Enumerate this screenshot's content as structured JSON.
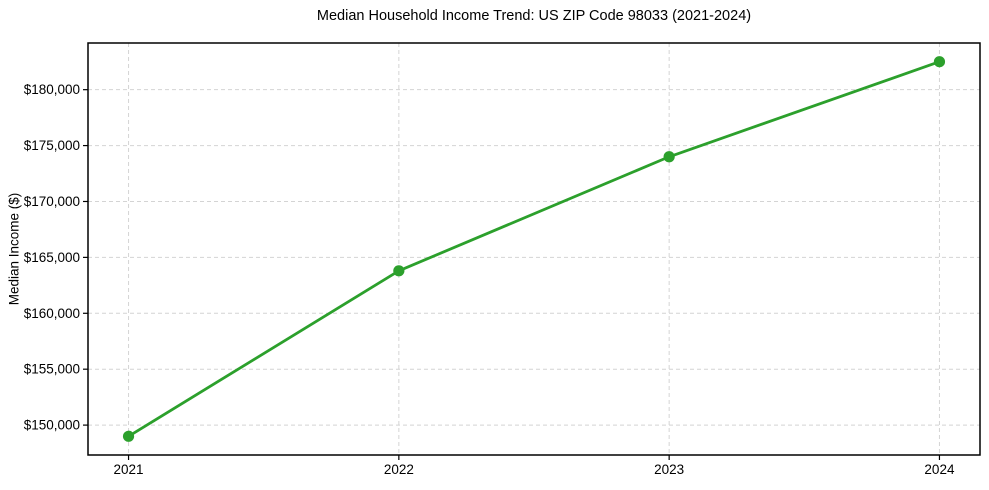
{
  "chart_data": {
    "type": "line",
    "title": "Median Household Income Trend: US ZIP Code 98033 (2021-2024)",
    "xlabel": "",
    "ylabel": "Median Income ($)",
    "x": [
      2021,
      2022,
      2023,
      2024
    ],
    "x_tick_labels": [
      "2021",
      "2022",
      "2023",
      "2024"
    ],
    "values": [
      149000,
      163800,
      174000,
      182500
    ],
    "y_ticks": [
      150000,
      155000,
      160000,
      165000,
      170000,
      175000,
      180000
    ],
    "y_tick_labels": [
      "$150,000",
      "$155,000",
      "$160,000",
      "$165,000",
      "$170,000",
      "$175,000",
      "$180,000"
    ],
    "xlim": [
      2020.85,
      2024.15
    ],
    "ylim": [
      147325,
      184175
    ],
    "grid": true,
    "grid_style": "dashed",
    "legend": false,
    "marker": "circle",
    "line_color": "#2ca02c",
    "grid_color": "#d4d4d4",
    "spine_color": "#000000",
    "text_color": "#000000",
    "background_color": "#ffffff"
  }
}
